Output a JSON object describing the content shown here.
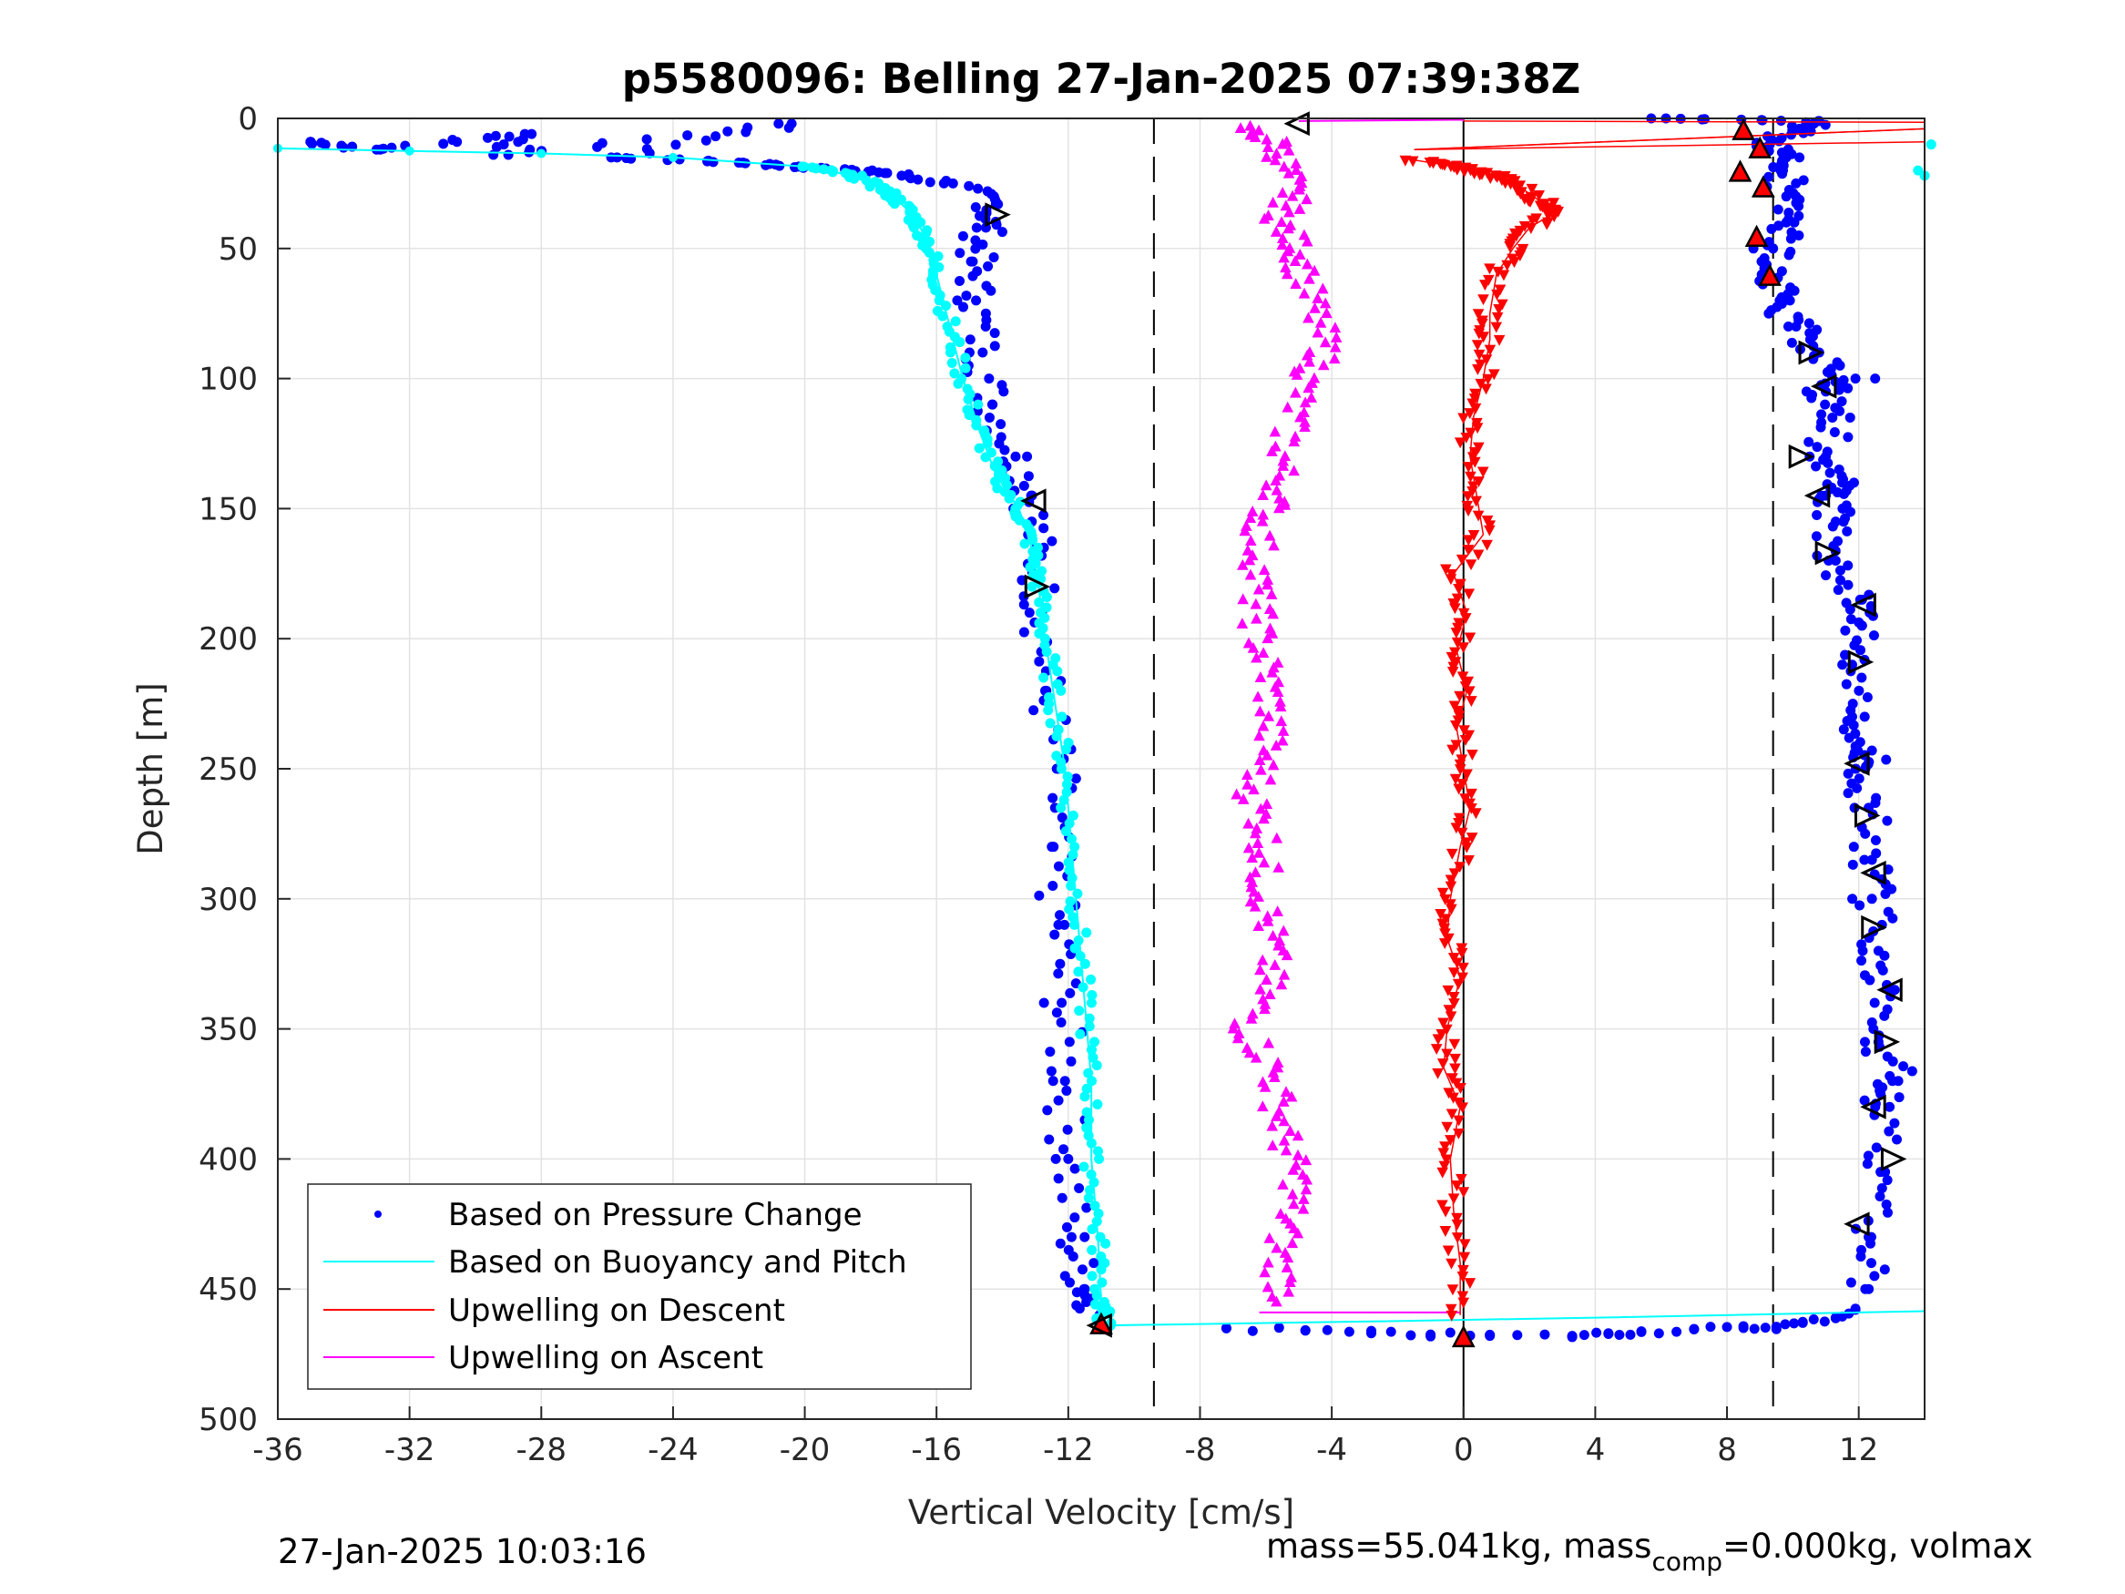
{
  "chart_data": {
    "type": "scatter",
    "title": "p5580096: Belling 27-Jan-2025 07:39:38Z",
    "xlabel": "Vertical Velocity [cm/s]",
    "ylabel": "Depth [m]",
    "xlim": [
      -36,
      14
    ],
    "ylim": [
      500,
      0
    ],
    "y_reversed": true,
    "grid": true,
    "xticks": [
      -36,
      -32,
      -28,
      -24,
      -20,
      -16,
      -12,
      -8,
      -4,
      0,
      4,
      8,
      12
    ],
    "xtick_labels": [
      "-36",
      "-32",
      "-28",
      "-24",
      "-20",
      "-16",
      "-12",
      "-8",
      "-4",
      "0",
      "4",
      "8",
      "12"
    ],
    "yticks": [
      0,
      50,
      100,
      150,
      200,
      250,
      300,
      350,
      400,
      450,
      500
    ],
    "ytick_labels": [
      "0",
      "50",
      "100",
      "150",
      "200",
      "250",
      "300",
      "350",
      "400",
      "450",
      "500"
    ],
    "reference_lines": [
      {
        "x": -9.4,
        "style": "dashed",
        "color": "#000000"
      },
      {
        "x": 9.4,
        "style": "dashed",
        "color": "#000000"
      },
      {
        "x": 0,
        "style": "solid",
        "color": "#000000"
      }
    ],
    "legend_position": "bottom-left",
    "legend": [
      {
        "label": "Based on Pressure Change",
        "color": "#0000ff",
        "marker": "dot"
      },
      {
        "label": "Based on Buoyancy and Pitch",
        "color": "#00ffff",
        "marker": "line"
      },
      {
        "label": "Upwelling on Descent",
        "color": "#ff0000",
        "marker": "line"
      },
      {
        "label": "Upwelling on Ascent",
        "color": "#ff00ff",
        "marker": "line"
      }
    ],
    "series": [
      {
        "name": "Based on Pressure Change",
        "color": "#0000ff",
        "kind": "dots",
        "profiles": [
          {
            "phase": "descent",
            "points": [
              [
                -35,
                9
              ],
              [
                -33,
                12
              ],
              [
                -28.5,
                6
              ],
              [
                -29,
                14
              ],
              [
                -20.4,
                2
              ],
              [
                -25.7,
                15
              ],
              [
                -22,
                17
              ],
              [
                -19.5,
                19
              ],
              [
                -17.5,
                21
              ],
              [
                -15.5,
                25
              ],
              [
                -14.2,
                33
              ],
              [
                -14.5,
                42
              ],
              [
                -14.9,
                55
              ],
              [
                -14.8,
                70
              ],
              [
                -14.6,
                90
              ],
              [
                -14.3,
                110
              ],
              [
                -13.6,
                130
              ],
              [
                -13.1,
                145
              ],
              [
                -13.0,
                165
              ],
              [
                -12.8,
                190
              ],
              [
                -12.7,
                220
              ],
              [
                -12.3,
                250
              ],
              [
                -12.5,
                280
              ],
              [
                -12.3,
                310
              ],
              [
                -12.2,
                340
              ],
              [
                -12.1,
                370
              ],
              [
                -12.0,
                400
              ],
              [
                -11.9,
                430
              ],
              [
                -11.5,
                450
              ],
              [
                -11.0,
                460
              ]
            ]
          },
          {
            "phase": "bottom",
            "points": [
              [
                -7.2,
                465
              ],
              [
                -4.8,
                466
              ],
              [
                -2.8,
                467
              ],
              [
                -1.0,
                467.5
              ],
              [
                0.8,
                468
              ],
              [
                3.3,
                468
              ],
              [
                4.4,
                467
              ],
              [
                5.4,
                466.5
              ],
              [
                7.0,
                465.5
              ],
              [
                8.5,
                465
              ],
              [
                9.5,
                464.5
              ],
              [
                10.3,
                463
              ],
              [
                11.3,
                461
              ],
              [
                11.9,
                458
              ]
            ]
          },
          {
            "phase": "ascent",
            "points": [
              [
                12.2,
                450
              ],
              [
                12.3,
                430
              ],
              [
                12.8,
                405
              ],
              [
                12.5,
                380
              ],
              [
                13.2,
                370
              ],
              [
                12.6,
                355
              ],
              [
                12.9,
                335
              ],
              [
                12.6,
                320
              ],
              [
                12.4,
                300
              ],
              [
                12.4,
                285
              ],
              [
                12.3,
                265
              ],
              [
                12.2,
                250
              ],
              [
                12.4,
                243
              ],
              [
                11.8,
                230
              ],
              [
                11.8,
                210
              ],
              [
                12.1,
                195
              ],
              [
                12.1,
                185
              ],
              [
                11.3,
                170
              ],
              [
                11.3,
                155
              ],
              [
                11.0,
                145
              ],
              [
                11.5,
                140
              ],
              [
                11.0,
                130
              ],
              [
                11.2,
                115
              ],
              [
                11.0,
                105
              ],
              [
                11.9,
                100
              ],
              [
                10.8,
                90
              ],
              [
                10.1,
                80
              ],
              [
                9.6,
                70
              ],
              [
                9.3,
                60
              ],
              [
                9.4,
                50
              ],
              [
                9.8,
                40
              ],
              [
                9.8,
                30
              ],
              [
                9.7,
                20
              ],
              [
                10.2,
                15
              ],
              [
                9.3,
                10
              ],
              [
                10.0,
                5
              ],
              [
                10.8,
                1
              ],
              [
                5.7,
                0
              ]
            ]
          }
        ]
      },
      {
        "name": "Based on Buoyancy and Pitch",
        "color": "#00ffff",
        "kind": "line",
        "points": [
          [
            -36,
            11.5
          ],
          [
            -32,
            12.5
          ],
          [
            -28,
            13.5
          ],
          [
            -24,
            15
          ],
          [
            -20,
            18.5
          ],
          [
            -18.5,
            22
          ],
          [
            -17.5,
            28
          ],
          [
            -16.8,
            36
          ],
          [
            -16.3,
            46
          ],
          [
            -16.0,
            60
          ],
          [
            -15.6,
            80
          ],
          [
            -15.2,
            100
          ],
          [
            -14.7,
            120
          ],
          [
            -14.2,
            137
          ],
          [
            -13.5,
            150
          ],
          [
            -13.1,
            165
          ],
          [
            -12.9,
            180
          ],
          [
            -12.7,
            200
          ],
          [
            -12.4,
            225
          ],
          [
            -12.1,
            250
          ],
          [
            -11.9,
            280
          ],
          [
            -11.7,
            310
          ],
          [
            -11.5,
            340
          ],
          [
            -11.3,
            370
          ],
          [
            -11.3,
            400
          ],
          [
            -11.1,
            430
          ],
          [
            -11.0,
            455
          ],
          [
            -10.9,
            464
          ],
          [
            -3.0,
            462.5
          ],
          [
            4.0,
            461
          ],
          [
            12.0,
            459
          ],
          [
            14.0,
            458.5
          ]
        ],
        "extra_dots": [
          [
            13.8,
            20
          ],
          [
            14.2,
            10
          ],
          [
            14.0,
            22
          ]
        ]
      },
      {
        "name": "Upwelling on Descent",
        "color": "#ff0000",
        "kind": "triangles-down",
        "points": [
          [
            -1.5,
            16
          ],
          [
            -0.5,
            18
          ],
          [
            0.2,
            20
          ],
          [
            1.0,
            22
          ],
          [
            1.6,
            25
          ],
          [
            2.1,
            30
          ],
          [
            2.5,
            33
          ],
          [
            2.8,
            36
          ],
          [
            2.0,
            42
          ],
          [
            1.5,
            50
          ],
          [
            1.0,
            60
          ],
          [
            0.8,
            75
          ],
          [
            0.8,
            85
          ],
          [
            0.6,
            100
          ],
          [
            0.3,
            115
          ],
          [
            0.2,
            130
          ],
          [
            0.4,
            145
          ],
          [
            0.6,
            160
          ],
          [
            -0.3,
            175
          ],
          [
            0.1,
            190
          ],
          [
            -0.2,
            205
          ],
          [
            0.1,
            220
          ],
          [
            -0.2,
            235
          ],
          [
            0.0,
            250
          ],
          [
            0.2,
            265
          ],
          [
            -0.1,
            280
          ],
          [
            -0.4,
            300
          ],
          [
            -0.5,
            315
          ],
          [
            -0.1,
            330
          ],
          [
            -0.5,
            350
          ],
          [
            -0.6,
            365
          ],
          [
            -0.1,
            380
          ],
          [
            -0.4,
            400
          ],
          [
            -0.3,
            420
          ],
          [
            -0.1,
            440
          ],
          [
            -0.1,
            460
          ]
        ],
        "markers_big": [
          [
            8.5,
            5
          ],
          [
            9.0,
            12
          ],
          [
            8.4,
            21
          ],
          [
            9.1,
            27
          ],
          [
            8.9,
            46
          ],
          [
            9.3,
            61
          ],
          [
            -11.0,
            464
          ],
          [
            0.0,
            469
          ]
        ]
      },
      {
        "name": "Upwelling on Ascent",
        "color": "#ff00ff",
        "kind": "triangles-up",
        "points": [
          [
            -6.8,
            3
          ],
          [
            -5.6,
            10
          ],
          [
            -5.4,
            20
          ],
          [
            -5.2,
            30
          ],
          [
            -5.6,
            40
          ],
          [
            -5.0,
            50
          ],
          [
            -4.9,
            60
          ],
          [
            -4.5,
            75
          ],
          [
            -4.2,
            90
          ],
          [
            -4.8,
            100
          ],
          [
            -5.2,
            115
          ],
          [
            -5.5,
            130
          ],
          [
            -5.6,
            145
          ],
          [
            -6.2,
            155
          ],
          [
            -6.2,
            170
          ],
          [
            -6.3,
            185
          ],
          [
            -6.2,
            200
          ],
          [
            -5.9,
            215
          ],
          [
            -5.8,
            230
          ],
          [
            -6.0,
            245
          ],
          [
            -6.4,
            260
          ],
          [
            -6.0,
            275
          ],
          [
            -6.1,
            290
          ],
          [
            -6.0,
            305
          ],
          [
            -5.8,
            320
          ],
          [
            -6.0,
            335
          ],
          [
            -6.6,
            350
          ],
          [
            -5.8,
            365
          ],
          [
            -5.6,
            380
          ],
          [
            -5.4,
            395
          ],
          [
            -5.0,
            410
          ],
          [
            -5.4,
            425
          ],
          [
            -5.6,
            440
          ],
          [
            -5.4,
            455
          ]
        ]
      }
    ],
    "outline_markers_left": [
      [
        -5.0,
        2
      ],
      [
        -14.2,
        37
      ],
      [
        -13.0,
        147
      ],
      [
        -13.0,
        180
      ],
      [
        -11.0,
        464
      ]
    ],
    "outline_markers_right": [
      [
        10.5,
        90
      ],
      [
        11.0,
        103
      ],
      [
        10.2,
        130
      ],
      [
        10.8,
        145
      ],
      [
        11.0,
        167
      ],
      [
        12.2,
        187
      ],
      [
        12.0,
        209
      ],
      [
        12.0,
        248
      ],
      [
        12.2,
        268
      ],
      [
        12.5,
        290
      ],
      [
        12.4,
        311
      ],
      [
        13.0,
        335
      ],
      [
        12.8,
        355
      ],
      [
        12.5,
        380
      ],
      [
        13.0,
        400
      ],
      [
        12.0,
        425
      ]
    ]
  },
  "footer": {
    "left": "27-Jan-2025 10:03:16",
    "right_main": "mass=55.041kg, mass",
    "right_sub": "comp",
    "right_tail": "=0.000kg, volmax"
  }
}
